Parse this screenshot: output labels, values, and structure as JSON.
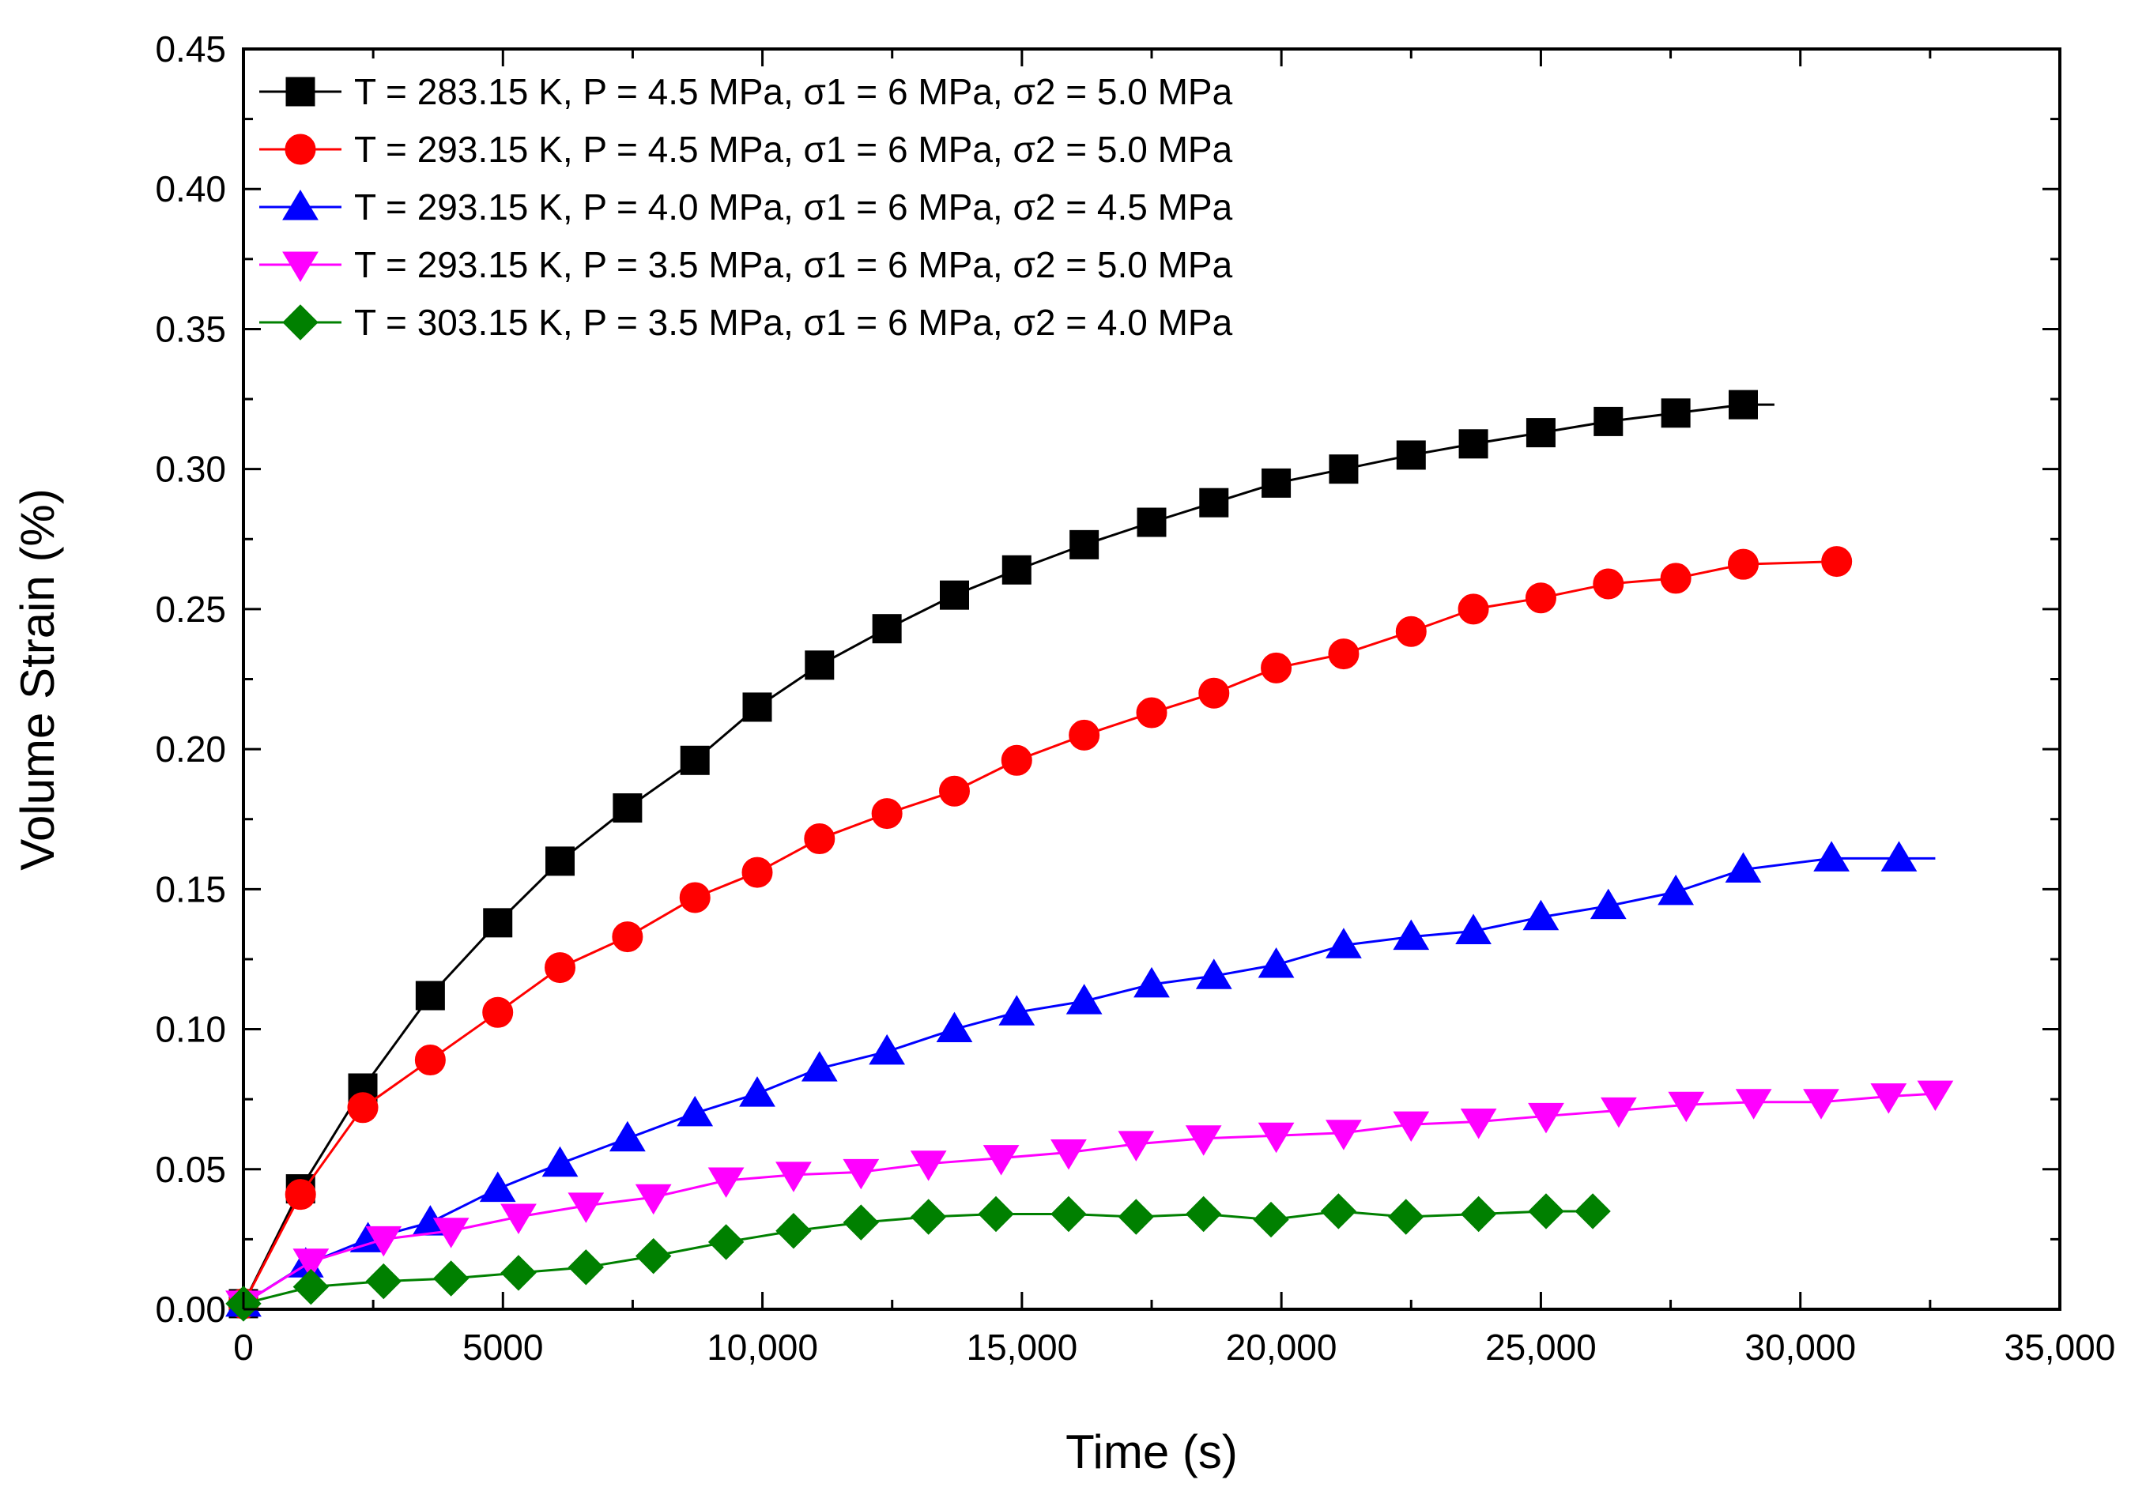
{
  "chart_data": {
    "type": "line",
    "title": "",
    "xlabel": "Time (s)",
    "ylabel": "Volume Strain (%)",
    "xlim": [
      0,
      35000
    ],
    "ylim": [
      0,
      0.45
    ],
    "x_ticks": [
      0,
      5000,
      10000,
      15000,
      20000,
      25000,
      30000,
      35000
    ],
    "x_tick_labels": [
      "0",
      "5000",
      "10,000",
      "15,000",
      "20,000",
      "25,000",
      "30,000",
      "35,000"
    ],
    "y_ticks": [
      0,
      0.05,
      0.1,
      0.15,
      0.2,
      0.25,
      0.3,
      0.35,
      0.4,
      0.45
    ],
    "y_tick_labels": [
      "0.00",
      "0.05",
      "0.10",
      "0.15",
      "0.20",
      "0.25",
      "0.30",
      "0.35",
      "0.40",
      "0.45"
    ],
    "grid": false,
    "legend_position": "top-left",
    "series": [
      {
        "name": "T = 283.15 K, P = 4.5 MPa, σ1 = 6 MPa, σ2 = 5.0 MPa",
        "color": "#000000",
        "marker": "square",
        "line_end_x": 29500,
        "points": [
          [
            0,
            0.002
          ],
          [
            1100,
            0.043
          ],
          [
            2300,
            0.079
          ],
          [
            3600,
            0.112
          ],
          [
            4900,
            0.138
          ],
          [
            6100,
            0.16
          ],
          [
            7400,
            0.179
          ],
          [
            8700,
            0.196
          ],
          [
            9900,
            0.215
          ],
          [
            11100,
            0.23
          ],
          [
            12400,
            0.243
          ],
          [
            13700,
            0.255
          ],
          [
            14900,
            0.264
          ],
          [
            16200,
            0.273
          ],
          [
            17500,
            0.281
          ],
          [
            18700,
            0.288
          ],
          [
            19900,
            0.295
          ],
          [
            21200,
            0.3
          ],
          [
            22500,
            0.305
          ],
          [
            23700,
            0.309
          ],
          [
            25000,
            0.313
          ],
          [
            26300,
            0.317
          ],
          [
            27600,
            0.32
          ],
          [
            28900,
            0.323
          ]
        ]
      },
      {
        "name": "T = 293.15 K, P = 4.5 MPa, σ1 = 6 MPa, σ2 = 5.0 MPa",
        "color": "#ff0000",
        "marker": "circle",
        "line_end_x": 30700,
        "points": [
          [
            0,
            0.002
          ],
          [
            1100,
            0.041
          ],
          [
            2300,
            0.072
          ],
          [
            3600,
            0.089
          ],
          [
            4900,
            0.106
          ],
          [
            6100,
            0.122
          ],
          [
            7400,
            0.133
          ],
          [
            8700,
            0.147
          ],
          [
            9900,
            0.156
          ],
          [
            11100,
            0.168
          ],
          [
            12400,
            0.177
          ],
          [
            13700,
            0.185
          ],
          [
            14900,
            0.196
          ],
          [
            16200,
            0.205
          ],
          [
            17500,
            0.213
          ],
          [
            18700,
            0.22
          ],
          [
            19900,
            0.229
          ],
          [
            21200,
            0.234
          ],
          [
            22500,
            0.242
          ],
          [
            23700,
            0.25
          ],
          [
            25000,
            0.254
          ],
          [
            26300,
            0.259
          ],
          [
            27600,
            0.261
          ],
          [
            28900,
            0.266
          ],
          [
            30700,
            0.267
          ]
        ]
      },
      {
        "name": "T = 293.15 K, P = 4.0 MPa, σ1 = 6 MPa, σ2 = 4.5 MPa",
        "color": "#0000ff",
        "marker": "triangle-up",
        "line_end_x": 32600,
        "points": [
          [
            0,
            0.002
          ],
          [
            1200,
            0.016
          ],
          [
            2400,
            0.025
          ],
          [
            3600,
            0.031
          ],
          [
            4900,
            0.043
          ],
          [
            6100,
            0.052
          ],
          [
            7400,
            0.061
          ],
          [
            8700,
            0.07
          ],
          [
            9900,
            0.077
          ],
          [
            11100,
            0.086
          ],
          [
            12400,
            0.092
          ],
          [
            13700,
            0.1
          ],
          [
            14900,
            0.106
          ],
          [
            16200,
            0.11
          ],
          [
            17500,
            0.116
          ],
          [
            18700,
            0.119
          ],
          [
            19900,
            0.123
          ],
          [
            21200,
            0.13
          ],
          [
            22500,
            0.133
          ],
          [
            23700,
            0.135
          ],
          [
            25000,
            0.14
          ],
          [
            26300,
            0.144
          ],
          [
            27600,
            0.149
          ],
          [
            28900,
            0.157
          ],
          [
            30600,
            0.161
          ],
          [
            31900,
            0.161
          ]
        ]
      },
      {
        "name": "T = 293.15 K, P = 3.5 MPa, σ1 = 6 MPa, σ2 = 5.0 MPa",
        "color": "#ff00ff",
        "marker": "triangle-down",
        "line_end_x": 32700,
        "points": [
          [
            0,
            0.002
          ],
          [
            1300,
            0.017
          ],
          [
            2700,
            0.025
          ],
          [
            4000,
            0.028
          ],
          [
            5300,
            0.033
          ],
          [
            6600,
            0.037
          ],
          [
            7900,
            0.04
          ],
          [
            9300,
            0.046
          ],
          [
            10600,
            0.048
          ],
          [
            11900,
            0.049
          ],
          [
            13200,
            0.052
          ],
          [
            14600,
            0.054
          ],
          [
            15900,
            0.056
          ],
          [
            17200,
            0.059
          ],
          [
            18500,
            0.061
          ],
          [
            19900,
            0.062
          ],
          [
            21200,
            0.063
          ],
          [
            22500,
            0.066
          ],
          [
            23800,
            0.067
          ],
          [
            25100,
            0.069
          ],
          [
            26500,
            0.071
          ],
          [
            27800,
            0.073
          ],
          [
            29100,
            0.074
          ],
          [
            30400,
            0.074
          ],
          [
            31700,
            0.076
          ],
          [
            32600,
            0.077
          ]
        ]
      },
      {
        "name": "T = 303.15 K, P = 3.5 MPa, σ1 = 6 MPa, σ2 = 4.0 MPa",
        "color": "#008000",
        "marker": "diamond",
        "line_end_x": 26000,
        "points": [
          [
            0,
            0.002
          ],
          [
            1300,
            0.008
          ],
          [
            2700,
            0.01
          ],
          [
            4000,
            0.011
          ],
          [
            5300,
            0.013
          ],
          [
            6600,
            0.015
          ],
          [
            7900,
            0.019
          ],
          [
            9300,
            0.024
          ],
          [
            10600,
            0.028
          ],
          [
            11900,
            0.031
          ],
          [
            13200,
            0.033
          ],
          [
            14500,
            0.034
          ],
          [
            15900,
            0.034
          ],
          [
            17200,
            0.033
          ],
          [
            18500,
            0.034
          ],
          [
            19800,
            0.032
          ],
          [
            21100,
            0.035
          ],
          [
            22400,
            0.033
          ],
          [
            23800,
            0.034
          ],
          [
            25100,
            0.035
          ],
          [
            26000,
            0.035
          ]
        ]
      }
    ]
  }
}
